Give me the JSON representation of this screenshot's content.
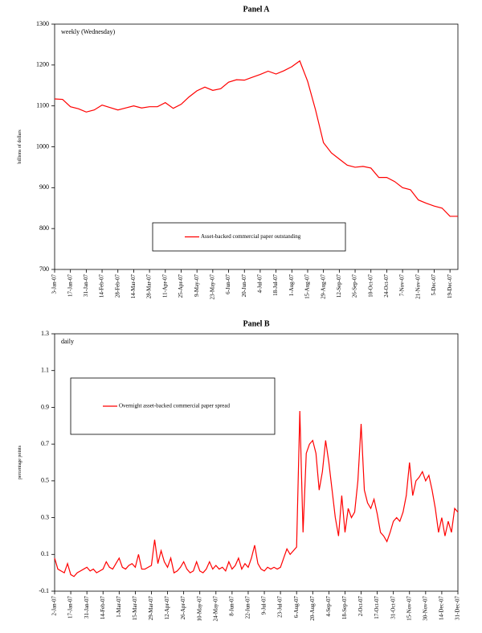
{
  "chart_data": [
    {
      "type": "line",
      "title": "Panel A",
      "annotation": "weekly (Wednesday)",
      "ylabel": "billions of dollars",
      "categories": [
        "3-Jan-07",
        null,
        "17-Jan-07",
        null,
        "31-Jan-07",
        null,
        "14-Feb-07",
        null,
        "28-Feb-07",
        null,
        "14-Mar-07",
        null,
        "28-Mar-07",
        null,
        "11-Apr-07",
        null,
        "25-Apr-07",
        null,
        "9-May-07",
        null,
        "23-May-07",
        null,
        "6-Jun-07",
        null,
        "20-Jun-07",
        null,
        "4-Jul-07",
        null,
        "18-Jul-07",
        null,
        "1-Aug-07",
        null,
        "15-Aug-07",
        null,
        "29-Aug-07",
        null,
        "12-Sep-07",
        null,
        "26-Sep-07",
        null,
        "10-Oct-07",
        null,
        "24-Oct-07",
        null,
        "7-Nov-07",
        null,
        "21-Nov-07",
        null,
        "5-Dec-07",
        null,
        "19-Dec-07",
        null
      ],
      "series": [
        {
          "name": "Asset-backed commercial paper outstanding",
          "color": "#ff0000",
          "values": [
            1117,
            1116,
            1098,
            1093,
            1085,
            1090,
            1102,
            1096,
            1090,
            1095,
            1100,
            1095,
            1098,
            1098,
            1108,
            1094,
            1104,
            1122,
            1137,
            1146,
            1138,
            1142,
            1158,
            1164,
            1163,
            1170,
            1177,
            1185,
            1178,
            1186,
            1196,
            1210,
            1160,
            1090,
            1010,
            985,
            970,
            955,
            950,
            952,
            948,
            925,
            925,
            915,
            900,
            895,
            870,
            862,
            855,
            850,
            830,
            830
          ]
        }
      ],
      "ylim": [
        700,
        1300
      ],
      "yticks": [
        700,
        800,
        900,
        1000,
        1100,
        1200,
        1300
      ]
    },
    {
      "type": "line",
      "title": "Panel B",
      "annotation": "daily",
      "ylabel": "percentage points",
      "categories": [
        "2-Jan-07",
        null,
        null,
        null,
        null,
        "17-Jan-07",
        null,
        null,
        null,
        null,
        "31-Jan-07",
        null,
        null,
        null,
        null,
        "14-Feb-07",
        null,
        null,
        null,
        null,
        "1-Mar-07",
        null,
        null,
        null,
        null,
        "15-Mar-07",
        null,
        null,
        null,
        null,
        "29-Mar-07",
        null,
        null,
        null,
        null,
        "12-Apr-07",
        null,
        null,
        null,
        null,
        "26-Apr-07",
        null,
        null,
        null,
        null,
        "10-May-07",
        null,
        null,
        null,
        null,
        "24-May-07",
        null,
        null,
        null,
        null,
        "8-Jun-07",
        null,
        null,
        null,
        null,
        "22-Jun-07",
        null,
        null,
        null,
        null,
        "9-Jul-07",
        null,
        null,
        null,
        null,
        "23-Jul-07",
        null,
        null,
        null,
        null,
        "6-Aug-07",
        null,
        null,
        null,
        null,
        "20-Aug-07",
        null,
        null,
        null,
        null,
        "4-Sep-07",
        null,
        null,
        null,
        null,
        "18-Sep-07",
        null,
        null,
        null,
        null,
        "2-Oct-07",
        null,
        null,
        null,
        null,
        "17-Oct-07",
        null,
        null,
        null,
        null,
        "31-Oct-07",
        null,
        null,
        null,
        null,
        "15-Nov-07",
        null,
        null,
        null,
        null,
        "30-Nov-07",
        null,
        null,
        null,
        null,
        "14-Dec-07",
        null,
        null,
        null,
        null,
        "31-Dec-07"
      ],
      "series": [
        {
          "name": "Overnight asset-backed commercial paper spread",
          "color": "#ff0000",
          "values": [
            0.08,
            0.02,
            0.01,
            0.0,
            0.05,
            -0.01,
            -0.02,
            0.0,
            0.01,
            0.02,
            0.03,
            0.01,
            0.02,
            0.0,
            0.01,
            0.02,
            0.06,
            0.03,
            0.02,
            0.05,
            0.08,
            0.03,
            0.02,
            0.04,
            0.05,
            0.03,
            0.1,
            0.02,
            0.02,
            0.03,
            0.04,
            0.18,
            0.05,
            0.12,
            0.06,
            0.03,
            0.08,
            0.0,
            0.01,
            0.03,
            0.06,
            0.02,
            0.0,
            0.01,
            0.06,
            0.01,
            0.0,
            0.02,
            0.06,
            0.02,
            0.04,
            0.02,
            0.03,
            0.01,
            0.06,
            0.02,
            0.04,
            0.08,
            0.02,
            0.05,
            0.03,
            0.08,
            0.15,
            0.05,
            0.02,
            0.01,
            0.03,
            0.02,
            0.03,
            0.02,
            0.03,
            0.08,
            0.13,
            0.1,
            0.12,
            0.14,
            0.88,
            0.22,
            0.65,
            0.7,
            0.72,
            0.65,
            0.45,
            0.55,
            0.72,
            0.6,
            0.45,
            0.3,
            0.2,
            0.42,
            0.22,
            0.35,
            0.3,
            0.33,
            0.5,
            0.81,
            0.45,
            0.38,
            0.35,
            0.4,
            0.32,
            0.22,
            0.2,
            0.17,
            0.22,
            0.28,
            0.3,
            0.28,
            0.33,
            0.42,
            0.6,
            0.42,
            0.5,
            0.52,
            0.55,
            0.5,
            0.53,
            0.45,
            0.35,
            0.22,
            0.3,
            0.2,
            0.28,
            0.22,
            0.35,
            0.33
          ]
        }
      ],
      "ylim": [
        -0.1,
        1.3
      ],
      "yticks": [
        -0.1,
        0.1,
        0.3,
        0.5,
        0.7,
        0.9,
        1.1,
        1.3
      ]
    }
  ]
}
